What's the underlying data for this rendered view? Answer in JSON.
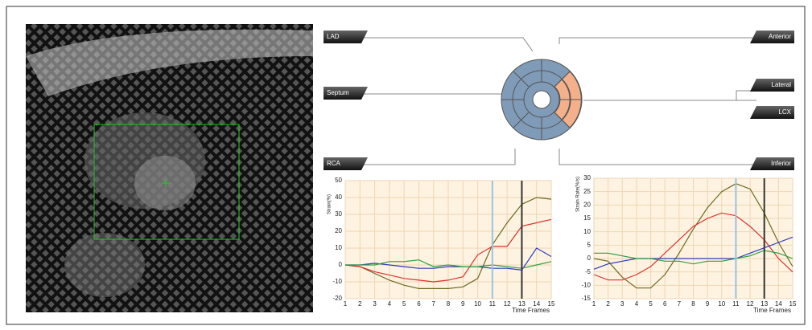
{
  "tags": {
    "lad": "LAD",
    "septum": "Septum",
    "rca": "RCA",
    "anterior": "Anterior",
    "lateral": "Lateral",
    "lcx": "LCX",
    "inferior": "Inferior"
  },
  "chart_data": [
    {
      "type": "line",
      "ylabel": "Strain(%)",
      "xlabel": "Time Frames",
      "x": [
        1,
        2,
        3,
        4,
        5,
        6,
        7,
        8,
        9,
        10,
        11,
        12,
        13,
        14,
        15
      ],
      "xlim": [
        1,
        15
      ],
      "xticks": [
        1,
        2,
        3,
        4,
        5,
        6,
        7,
        8,
        9,
        10,
        11,
        12,
        13,
        14,
        15
      ],
      "ylim": [
        -20,
        50
      ],
      "yticks": [
        -20,
        -10,
        0,
        10,
        20,
        30,
        40,
        50
      ],
      "grid": true,
      "markers": [
        {
          "x": 11,
          "color": "#9ec0e0"
        },
        {
          "x": 13,
          "color": "#333333"
        }
      ],
      "series": [
        {
          "color": "#6b6b22",
          "values": [
            0,
            -1,
            -5,
            -9,
            -12,
            -14,
            -14,
            -14,
            -13,
            -8,
            12,
            25,
            36,
            40,
            39
          ]
        },
        {
          "color": "#e03030",
          "values": [
            0,
            -1,
            -4,
            -6,
            -8,
            -9,
            -10,
            -9,
            -7,
            6,
            11,
            11,
            23,
            25,
            27
          ]
        },
        {
          "color": "#3038c0",
          "values": [
            0,
            0,
            1,
            0,
            -1,
            -2,
            -2,
            -1,
            -1,
            -1,
            -2,
            -2,
            -3,
            10,
            5
          ]
        },
        {
          "color": "#30a040",
          "values": [
            0,
            0,
            0,
            2,
            2,
            3,
            -1,
            0,
            -1,
            -1,
            0,
            -1,
            -2,
            0,
            2
          ]
        }
      ]
    },
    {
      "type": "line",
      "ylabel": "Strain Rate(%/s)",
      "xlabel": "Time Frames",
      "x": [
        1,
        2,
        3,
        4,
        5,
        6,
        7,
        8,
        9,
        10,
        11,
        12,
        13,
        14,
        15
      ],
      "xlim": [
        1,
        15
      ],
      "xticks": [
        1,
        2,
        3,
        4,
        5,
        6,
        7,
        8,
        9,
        10,
        11,
        12,
        13,
        14,
        15
      ],
      "ylim": [
        -15,
        30
      ],
      "yticks": [
        -15,
        -10,
        -5,
        0,
        5,
        10,
        15,
        20,
        25,
        30
      ],
      "grid": true,
      "markers": [
        {
          "x": 11,
          "color": "#9ec0e0"
        },
        {
          "x": 13,
          "color": "#333333"
        }
      ],
      "series": [
        {
          "color": "#6b6b22",
          "values": [
            0,
            -1,
            -7,
            -11,
            -11,
            -6,
            2,
            11,
            19,
            25,
            28,
            26,
            17,
            6,
            -3
          ]
        },
        {
          "color": "#e03030",
          "values": [
            -6,
            -8,
            -8,
            -6,
            -3,
            2,
            7,
            12,
            15,
            17,
            16,
            12,
            7,
            0,
            -5
          ]
        },
        {
          "color": "#3038c0",
          "values": [
            -4,
            -2,
            -1,
            0,
            0,
            0,
            0,
            0,
            0,
            0,
            0,
            2,
            4,
            6,
            8
          ]
        },
        {
          "color": "#30a040",
          "values": [
            2,
            2,
            1,
            0,
            0,
            -1,
            -1,
            -2,
            -1,
            -1,
            0,
            1,
            3,
            2,
            0
          ]
        }
      ]
    }
  ]
}
